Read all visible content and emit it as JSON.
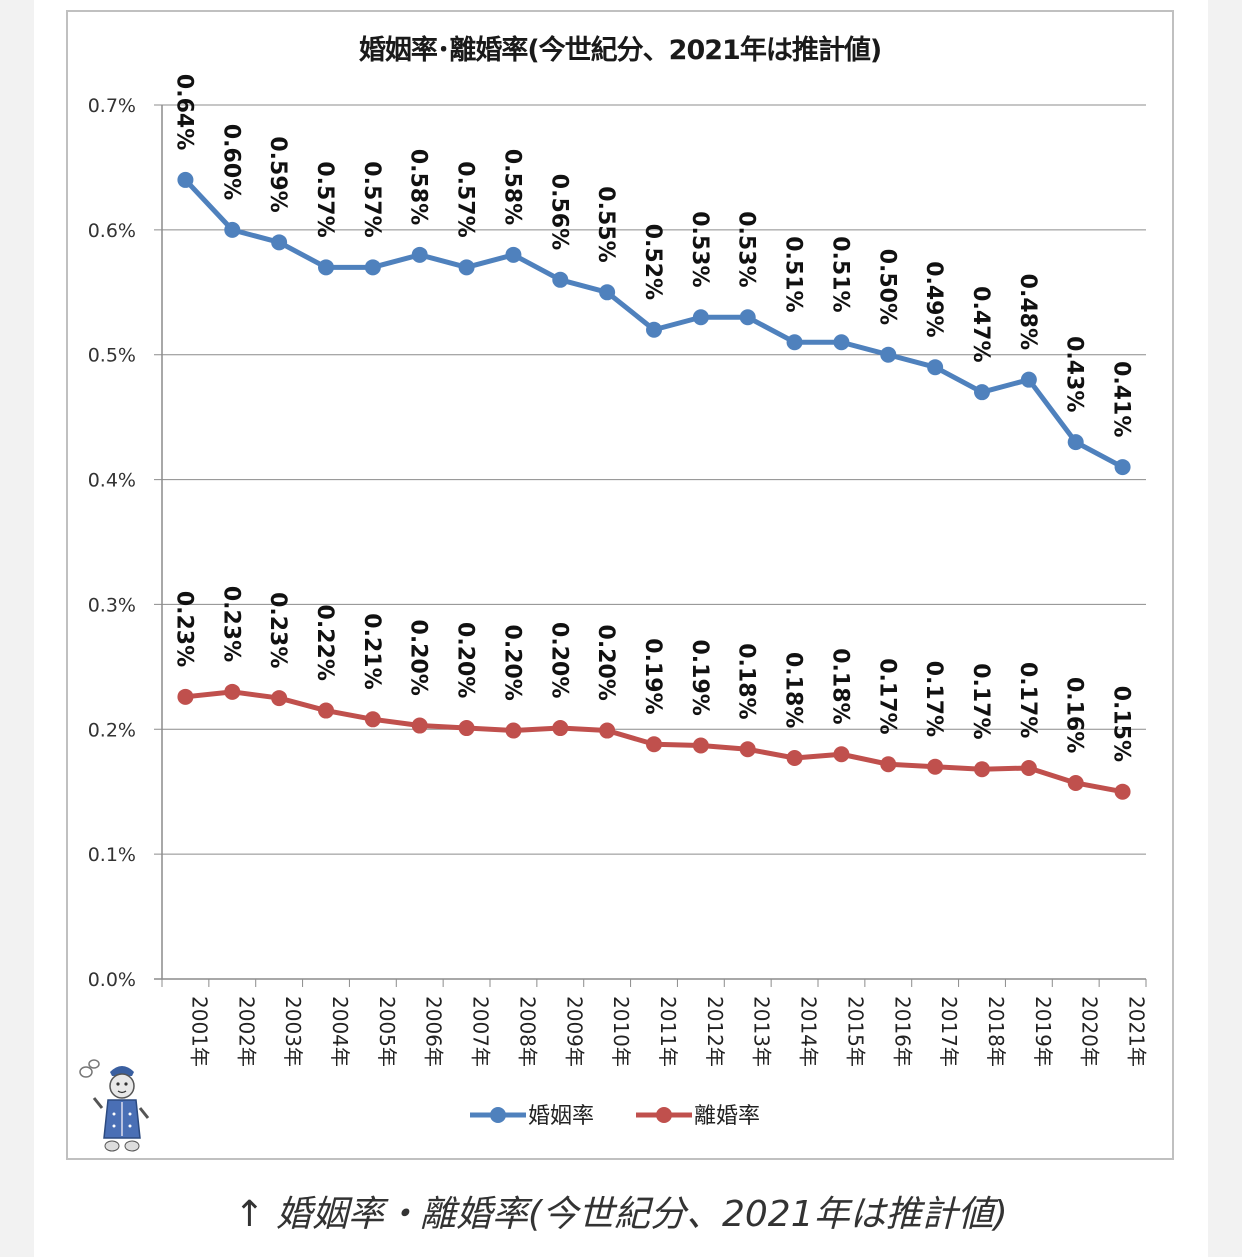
{
  "caption": {
    "arrow": "↑",
    "text": "婚姻率・離婚率(今世紀分、2021年は推計値)"
  },
  "chart_data": {
    "type": "line",
    "title": "婚姻率･離婚率(今世紀分、2021年は推計値)",
    "categories": [
      "2001年",
      "2002年",
      "2003年",
      "2004年",
      "2005年",
      "2006年",
      "2007年",
      "2008年",
      "2009年",
      "2010年",
      "2011年",
      "2012年",
      "2013年",
      "2014年",
      "2015年",
      "2016年",
      "2017年",
      "2018年",
      "2019年",
      "2020年",
      "2021年"
    ],
    "ylim": [
      0,
      0.7
    ],
    "yticks": [
      "0.0%",
      "0.1%",
      "0.2%",
      "0.3%",
      "0.4%",
      "0.5%",
      "0.6%",
      "0.7%"
    ],
    "grid": true,
    "legend_position": "bottom",
    "series": [
      {
        "name": "婚姻率",
        "color": "#4f81bd",
        "values": [
          0.64,
          0.6,
          0.59,
          0.57,
          0.57,
          0.58,
          0.57,
          0.58,
          0.56,
          0.55,
          0.52,
          0.53,
          0.53,
          0.51,
          0.51,
          0.5,
          0.49,
          0.47,
          0.48,
          0.43,
          0.41
        ],
        "labels": [
          "0.64%",
          "0.60%",
          "0.59%",
          "0.57%",
          "0.57%",
          "0.58%",
          "0.57%",
          "0.58%",
          "0.56%",
          "0.55%",
          "0.52%",
          "0.53%",
          "0.53%",
          "0.51%",
          "0.51%",
          "0.50%",
          "0.49%",
          "0.47%",
          "0.48%",
          "0.43%",
          "0.41%"
        ]
      },
      {
        "name": "離婚率",
        "color": "#c0504d",
        "values": [
          0.226,
          0.23,
          0.225,
          0.215,
          0.208,
          0.203,
          0.201,
          0.199,
          0.201,
          0.199,
          0.188,
          0.187,
          0.184,
          0.177,
          0.18,
          0.172,
          0.17,
          0.168,
          0.169,
          0.157,
          0.15
        ],
        "labels": [
          "0.23%",
          "0.23%",
          "0.23%",
          "0.22%",
          "0.21%",
          "0.20%",
          "0.20%",
          "0.20%",
          "0.20%",
          "0.20%",
          "0.19%",
          "0.19%",
          "0.18%",
          "0.18%",
          "0.18%",
          "0.17%",
          "0.17%",
          "0.17%",
          "0.17%",
          "0.16%",
          "0.15%"
        ]
      }
    ]
  }
}
